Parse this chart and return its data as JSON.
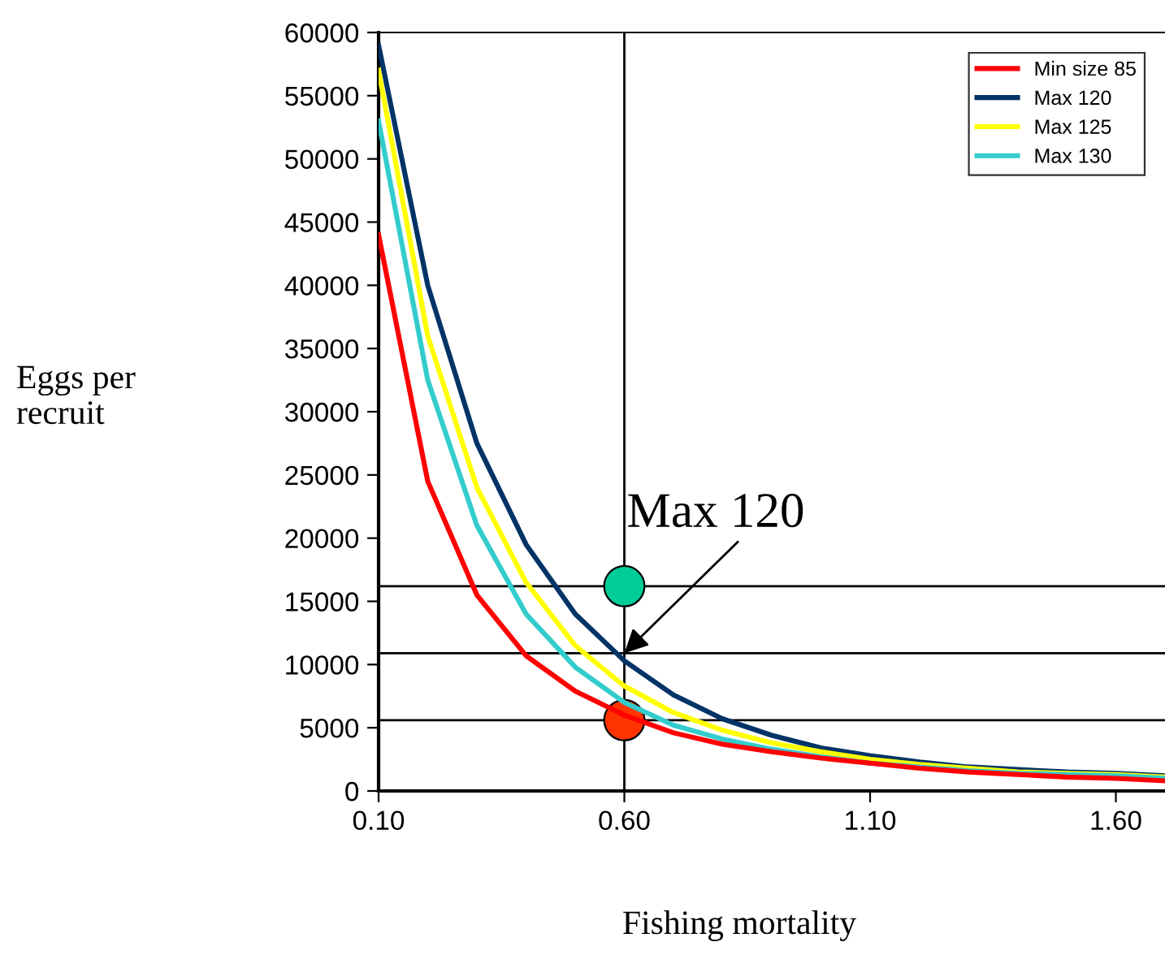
{
  "chart_data": {
    "type": "line",
    "xlabel": "Fishing mortality",
    "ylabel": "Eggs per\nrecruit",
    "x": [
      0.1,
      0.2,
      0.3,
      0.4,
      0.5,
      0.6,
      0.7,
      0.8,
      0.9,
      1.0,
      1.1,
      1.2,
      1.3,
      1.4,
      1.5,
      1.6,
      1.7
    ],
    "series": [
      {
        "name": "Min size 85",
        "color": "#ff0000",
        "values": [
          44000,
          24500,
          15500,
          10700,
          7900,
          6000,
          4600,
          3700,
          3100,
          2600,
          2200,
          1800,
          1500,
          1300,
          1100,
          1000,
          800
        ]
      },
      {
        "name": "Max 120",
        "color": "#003366",
        "values": [
          59000,
          40000,
          27500,
          19500,
          14000,
          10300,
          7600,
          5700,
          4400,
          3400,
          2800,
          2300,
          1900,
          1700,
          1500,
          1400,
          1200
        ]
      },
      {
        "name": "Max 125",
        "color": "#ffff00",
        "values": [
          57000,
          36000,
          24000,
          16500,
          11500,
          8300,
          6200,
          4800,
          3800,
          3100,
          2500,
          2100,
          1800,
          1500,
          1400,
          1300,
          1100
        ]
      },
      {
        "name": "Max 130",
        "color": "#33cccc",
        "values": [
          53000,
          32500,
          21000,
          14000,
          9800,
          7000,
          5200,
          4100,
          3300,
          2700,
          2200,
          1900,
          1600,
          1400,
          1300,
          1200,
          1000
        ]
      },
      {
        "type": "scatter",
        "marker": "circle",
        "color": "#00cc99",
        "x": [
          0.6
        ],
        "values": [
          16200
        ]
      },
      {
        "type": "scatter",
        "marker": "circle",
        "color": "#ff3300",
        "x": [
          0.6
        ],
        "values": [
          5600
        ]
      }
    ],
    "ref_lines": [
      {
        "axis": "x",
        "value": 0.6,
        "color": "#000000"
      },
      {
        "axis": "y",
        "value": 16200,
        "color": "#000000"
      },
      {
        "axis": "y",
        "value": 10900,
        "color": "#000000"
      },
      {
        "axis": "y",
        "value": 5600,
        "color": "#000000"
      }
    ],
    "annotations": [
      {
        "text": "Max 120",
        "x": 0.6,
        "y": 10900
      }
    ],
    "xlim": [
      0.1,
      1.7
    ],
    "ylim": [
      0,
      60000
    ],
    "xticks": [
      {
        "value": 0.1,
        "label": "0.10"
      },
      {
        "value": 0.6,
        "label": "0.60"
      },
      {
        "value": 1.1,
        "label": "1.10"
      },
      {
        "value": 1.6,
        "label": "1.60"
      }
    ],
    "yticks": [
      0,
      5000,
      10000,
      15000,
      20000,
      25000,
      30000,
      35000,
      40000,
      45000,
      50000,
      55000,
      60000
    ],
    "grid": false,
    "legend": "top right",
    "marker": "none",
    "line_style": "solid"
  }
}
